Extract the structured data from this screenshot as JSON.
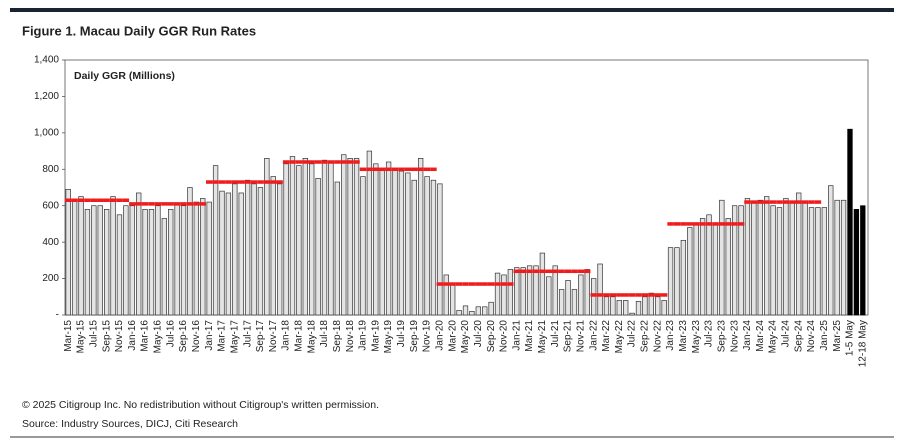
{
  "chart_data": {
    "type": "bar",
    "title": "Figure 1. Macau Daily GGR Run Rates",
    "annotation": "Daily GGR (Millions)",
    "footnotes": [
      "© 2025 Citigroup Inc. No redistribution without Citigroup's written permission.",
      "Source: Industry Sources, DICJ, Citi Research"
    ],
    "categories": [
      "Mar-15",
      null,
      "May-15",
      null,
      "Jul-15",
      null,
      "Sep-15",
      null,
      "Nov-15",
      null,
      "Jan-16",
      null,
      "Mar-16",
      null,
      "May-16",
      null,
      "Jul-16",
      null,
      "Sep-16",
      null,
      "Nov-16",
      null,
      "Jan-17",
      null,
      "Mar-17",
      null,
      "May-17",
      null,
      "Jul-17",
      null,
      "Sep-17",
      null,
      "Nov-17",
      null,
      "Jan-18",
      null,
      "Mar-18",
      null,
      "May-18",
      null,
      "Jul-18",
      null,
      "Sep-18",
      null,
      "Nov-18",
      null,
      "Jan-19",
      null,
      "Mar-19",
      null,
      "May-19",
      null,
      "Jul-19",
      null,
      "Sep-19",
      null,
      "Nov-19",
      null,
      "Jan-20",
      null,
      "Mar-20",
      null,
      "May-20",
      null,
      "Jul-20",
      null,
      "Sep-20",
      null,
      "Nov-20",
      null,
      "Jan-21",
      null,
      "Mar-21",
      null,
      "May-21",
      null,
      "Jul-21",
      null,
      "Sep-21",
      null,
      "Nov-21",
      null,
      "Jan-22",
      null,
      "Mar-22",
      null,
      "May-22",
      null,
      "Jul-22",
      null,
      "Sep-22",
      null,
      "Nov-22",
      null,
      "Jan-23",
      null,
      "Mar-23",
      null,
      "May-23",
      null,
      "Jul-23",
      null,
      "Sep-23",
      null,
      "Nov-23",
      null,
      "Jan-24",
      null,
      "Mar-24",
      null,
      "May-24",
      null,
      "Jul-24",
      null,
      "Sep-24",
      null,
      "Nov-24",
      null,
      "Jan-25",
      null,
      "Mar-25",
      null,
      "1-5 May",
      null,
      "12-18 May"
    ],
    "series": [
      {
        "type": "bar",
        "color": "#e4e4e4",
        "stroke": "#333333",
        "values": [
          690,
          630,
          650,
          580,
          600,
          600,
          580,
          650,
          550,
          600,
          600,
          670,
          580,
          580,
          600,
          530,
          580,
          610,
          600,
          700,
          620,
          640,
          620,
          820,
          680,
          670,
          720,
          670,
          740,
          720,
          700,
          860,
          760,
          720,
          830,
          870,
          820,
          860,
          830,
          750,
          850,
          840,
          730,
          880,
          860,
          860,
          760,
          900,
          830,
          800,
          840,
          800,
          790,
          780,
          740,
          860,
          760,
          740,
          720,
          220,
          170,
          25,
          50,
          20,
          45,
          45,
          70,
          230,
          220,
          250,
          260,
          260,
          270,
          270,
          340,
          210,
          270,
          140,
          190,
          140,
          220,
          250,
          200,
          280,
          100,
          100,
          80,
          80,
          10,
          75,
          100,
          120,
          100,
          80,
          370,
          370,
          410,
          480,
          500,
          530,
          550,
          500,
          630,
          530,
          600,
          600,
          640,
          620,
          630,
          650,
          600,
          590,
          640,
          620,
          670,
          620,
          590,
          590,
          590,
          710,
          630,
          630,
          null,
          null,
          null
        ]
      },
      {
        "type": "bar",
        "color": "#000000",
        "stroke": "#000000",
        "values": [
          null,
          null,
          null,
          null,
          null,
          null,
          null,
          null,
          null,
          null,
          null,
          null,
          null,
          null,
          null,
          null,
          null,
          null,
          null,
          null,
          null,
          null,
          null,
          null,
          null,
          null,
          null,
          null,
          null,
          null,
          null,
          null,
          null,
          null,
          null,
          null,
          null,
          null,
          null,
          null,
          null,
          null,
          null,
          null,
          null,
          null,
          null,
          null,
          null,
          null,
          null,
          null,
          null,
          null,
          null,
          null,
          null,
          null,
          null,
          null,
          null,
          null,
          null,
          null,
          null,
          null,
          null,
          null,
          null,
          null,
          null,
          null,
          null,
          null,
          null,
          null,
          null,
          null,
          null,
          null,
          null,
          null,
          null,
          null,
          null,
          null,
          null,
          null,
          null,
          null,
          null,
          null,
          null,
          null,
          null,
          null,
          null,
          null,
          null,
          null,
          null,
          null,
          null,
          null,
          null,
          null,
          null,
          null,
          null,
          null,
          null,
          null,
          null,
          null,
          null,
          null,
          null,
          null,
          null,
          null,
          null,
          null,
          1020,
          580,
          600
        ]
      },
      {
        "type": "segment",
        "color": "#ee1c1c",
        "values": [
          630,
          630,
          630,
          630,
          630,
          630,
          630,
          630,
          630,
          630,
          610,
          610,
          610,
          610,
          610,
          610,
          610,
          610,
          610,
          610,
          610,
          610,
          730,
          730,
          730,
          730,
          730,
          730,
          730,
          730,
          730,
          730,
          730,
          730,
          840,
          840,
          840,
          840,
          840,
          840,
          840,
          840,
          840,
          840,
          840,
          840,
          800,
          800,
          800,
          800,
          800,
          800,
          800,
          800,
          800,
          800,
          800,
          800,
          170,
          170,
          170,
          170,
          170,
          170,
          170,
          170,
          170,
          170,
          170,
          170,
          240,
          240,
          240,
          240,
          240,
          240,
          240,
          240,
          240,
          240,
          240,
          240,
          110,
          110,
          110,
          110,
          110,
          110,
          110,
          110,
          110,
          110,
          110,
          110,
          500,
          500,
          500,
          500,
          500,
          500,
          500,
          500,
          500,
          500,
          500,
          500,
          620,
          620,
          620,
          620,
          620,
          620,
          620,
          620,
          620,
          620,
          620,
          620,
          null,
          null,
          null,
          null,
          null,
          null,
          null
        ]
      }
    ],
    "ylim": [
      0,
      1400
    ],
    "yticks": [
      {
        "value": 0,
        "label": "-"
      },
      200,
      400,
      600,
      800,
      {
        "value": 1000,
        "label": "1,000"
      },
      {
        "value": 1200,
        "label": "1,200"
      },
      {
        "value": 1400,
        "label": "1,400"
      }
    ],
    "grid": false
  }
}
